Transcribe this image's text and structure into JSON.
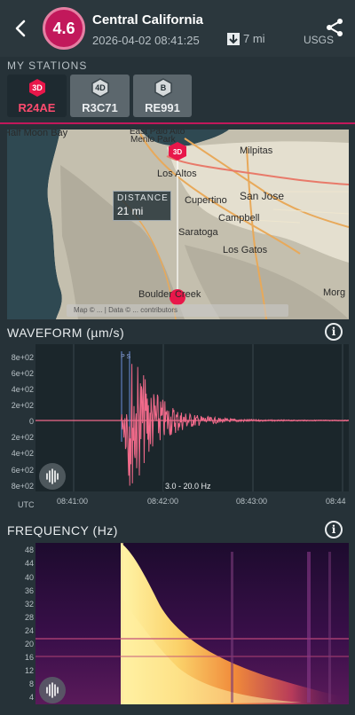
{
  "header": {
    "magnitude": "4.6",
    "region": "Central California",
    "datetime": "2026-04-02 08:41:25",
    "depth": "7 mi",
    "source": "USGS",
    "accent": "#c2185b"
  },
  "stations": {
    "label": "MY STATIONS",
    "items": [
      {
        "type": "3D",
        "code": "R24AE",
        "selected": true
      },
      {
        "type": "4D",
        "code": "R3C71",
        "selected": false
      },
      {
        "type": "B",
        "code": "RE991",
        "selected": false
      }
    ]
  },
  "map": {
    "places": [
      "Half Moon Bay",
      "East Palo Alto",
      "Menlo Park",
      "Milpitas",
      "Los Altos",
      "San Jose",
      "Cupertino",
      "Campbell",
      "Saratoga",
      "Los Gatos",
      "Boulder Creek",
      "Morg"
    ],
    "station_marker": "3D",
    "distance_label": "DISTANCE",
    "distance_value": "21 mi",
    "attribution": "Map © ... | Data © ... contributors"
  },
  "waveform": {
    "title": "WAVEFORM (µm/s)",
    "y_ticks": [
      "8e+02",
      "6e+02",
      "4e+02",
      "2e+02",
      "0",
      "2e+02",
      "4e+02",
      "6e+02",
      "8e+02"
    ],
    "x_ticks": [
      "UTC",
      "08:41:00",
      "08:42:00",
      "08:43:00",
      "08:44"
    ],
    "band": "3.0 - 20.0 Hz",
    "p_marker": "P S"
  },
  "frequency": {
    "title": "FREQUENCY (Hz)",
    "y_ticks": [
      "48",
      "44",
      "40",
      "36",
      "32",
      "28",
      "24",
      "20",
      "16",
      "12",
      "8",
      "4"
    ]
  }
}
